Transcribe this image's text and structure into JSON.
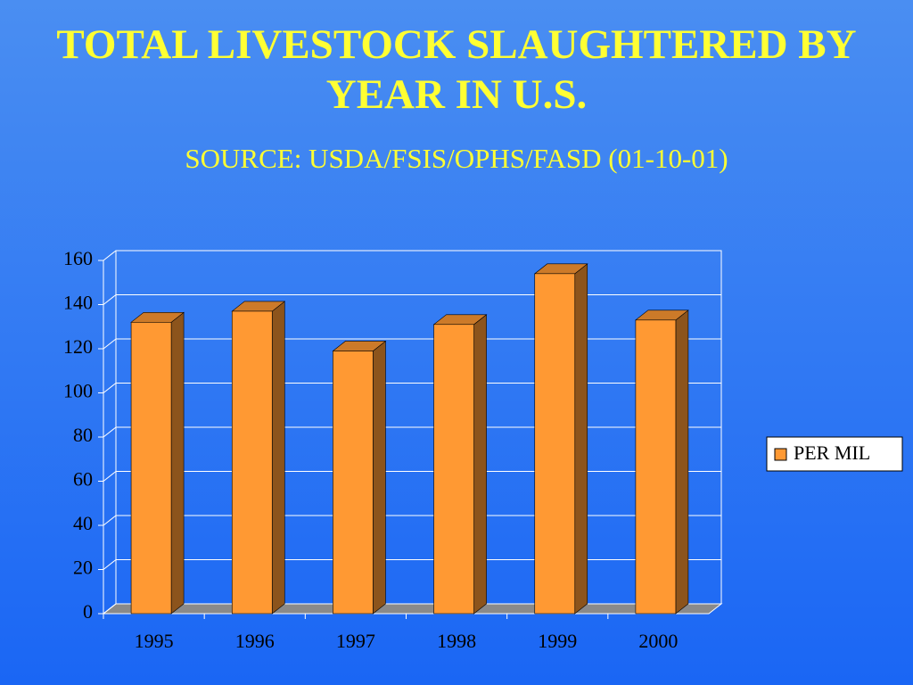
{
  "chart_data": {
    "type": "bar3d",
    "title": "TOTAL LIVESTOCK SLAUGHTERED BY YEAR IN U.S.",
    "subtitle": "SOURCE: USDA/FSIS/OPHS/FASD (01-10-01)",
    "categories": [
      "1995",
      "1996",
      "1997",
      "1998",
      "1999",
      "2000"
    ],
    "series": [
      {
        "name": "PER MIL",
        "color": "#ff9933",
        "values": [
          132,
          137,
          119,
          131,
          154,
          133
        ]
      }
    ],
    "ylim": [
      0,
      160
    ],
    "yticks": [
      0,
      20,
      40,
      60,
      80,
      100,
      120,
      140,
      160
    ],
    "grid": true,
    "legend": "right"
  }
}
